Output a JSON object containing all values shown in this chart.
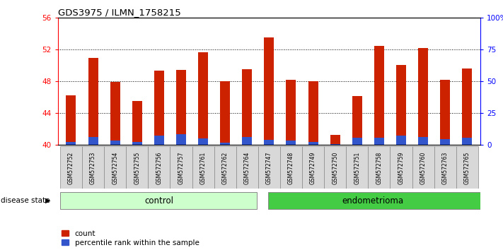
{
  "title": "GDS3975 / ILMN_1758215",
  "samples": [
    "GSM572752",
    "GSM572753",
    "GSM572754",
    "GSM572755",
    "GSM572756",
    "GSM572757",
    "GSM572761",
    "GSM572762",
    "GSM572764",
    "GSM572747",
    "GSM572748",
    "GSM572749",
    "GSM572750",
    "GSM572751",
    "GSM572758",
    "GSM572759",
    "GSM572760",
    "GSM572763",
    "GSM572765"
  ],
  "count_values": [
    46.2,
    50.9,
    47.9,
    45.5,
    49.3,
    49.4,
    51.6,
    48.0,
    49.5,
    53.5,
    48.2,
    48.0,
    41.3,
    46.1,
    52.4,
    50.0,
    52.2,
    48.2,
    49.6
  ],
  "percentile_values": [
    2.5,
    6.0,
    3.5,
    2.5,
    7.5,
    8.5,
    5.0,
    2.0,
    6.5,
    4.0,
    3.5,
    2.5,
    0.5,
    5.5,
    5.5,
    7.5,
    6.5,
    4.5,
    5.5
  ],
  "groups": [
    "control",
    "control",
    "control",
    "control",
    "control",
    "control",
    "control",
    "control",
    "control",
    "endometrioma",
    "endometrioma",
    "endometrioma",
    "endometrioma",
    "endometrioma",
    "endometrioma",
    "endometrioma",
    "endometrioma",
    "endometrioma",
    "endometrioma"
  ],
  "ylim_left": [
    40,
    56
  ],
  "ylim_right": [
    0,
    100
  ],
  "yticks_left": [
    40,
    44,
    48,
    52,
    56
  ],
  "yticks_right": [
    0,
    25,
    50,
    75,
    100
  ],
  "bar_color_red": "#cc2200",
  "bar_color_blue": "#3355cc",
  "control_color": "#ccffcc",
  "endometrioma_color": "#44cc44",
  "group_label": "disease state",
  "control_label": "control",
  "endometrioma_label": "endometrioma",
  "legend_count": "count",
  "legend_pct": "percentile rank within the sample",
  "bar_width": 0.45,
  "blue_bar_width": 0.45,
  "control_count": 9
}
